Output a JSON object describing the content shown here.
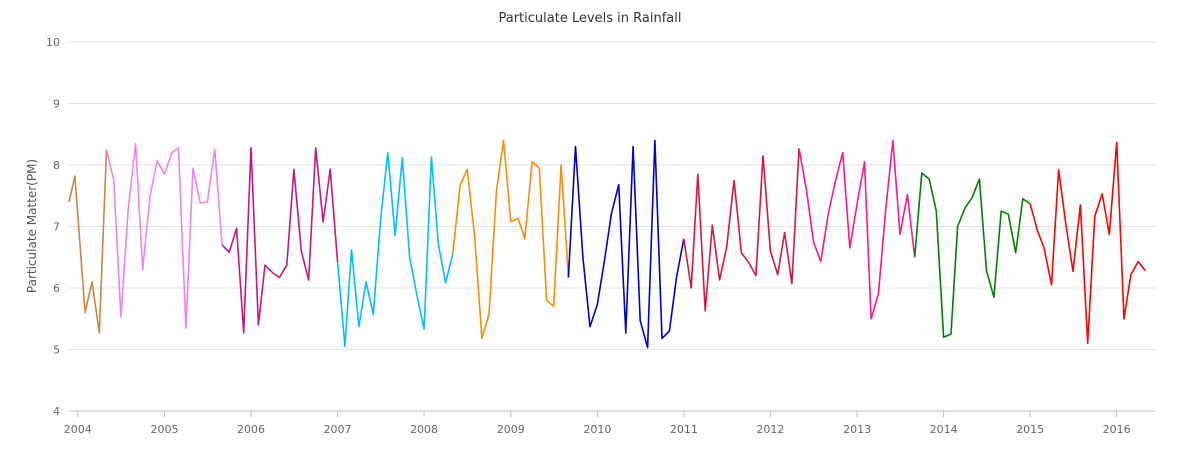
{
  "chart_data": {
    "type": "line",
    "title": "Particulate Levels in Rainfall",
    "ylabel": "Particulate Matter(PM)",
    "xlabel": "",
    "ylim": [
      4,
      10
    ],
    "yticks": [
      "4",
      "5",
      "6",
      "7",
      "8",
      "9",
      "10"
    ],
    "xlim": [
      "2003-11-25",
      "2016-06-15"
    ],
    "xticks": [
      {
        "label": "2004",
        "date": "2004-01-01"
      },
      {
        "label": "2005",
        "date": "2005-01-01"
      },
      {
        "label": "2006",
        "date": "2006-01-01"
      },
      {
        "label": "2007",
        "date": "2007-01-01"
      },
      {
        "label": "2008",
        "date": "2008-01-01"
      },
      {
        "label": "2009",
        "date": "2009-01-01"
      },
      {
        "label": "2010",
        "date": "2010-01-01"
      },
      {
        "label": "2011",
        "date": "2011-01-01"
      },
      {
        "label": "2012",
        "date": "2012-01-01"
      },
      {
        "label": "2013",
        "date": "2013-01-01"
      },
      {
        "label": "2014",
        "date": "2014-01-01"
      },
      {
        "label": "2015",
        "date": "2015-01-01"
      },
      {
        "label": "2016",
        "date": "2016-01-01"
      }
    ],
    "grid": true,
    "legend": "none",
    "series": [
      {
        "color": "#cd853f",
        "points": [
          [
            "2003-11-25",
            7.4
          ],
          [
            "2003-12-20",
            7.82
          ],
          [
            "2004-02-01",
            5.6
          ],
          [
            "2004-03-01",
            6.1
          ],
          [
            "2004-04-01",
            5.27
          ],
          [
            "2004-05-01",
            8.25
          ]
        ]
      },
      {
        "color": "#ee82ee",
        "points": [
          [
            "2004-05-01",
            8.25
          ],
          [
            "2004-06-01",
            7.75
          ],
          [
            "2004-07-01",
            5.53
          ],
          [
            "2004-08-01",
            7.3
          ],
          [
            "2004-09-01",
            8.35
          ],
          [
            "2004-10-01",
            6.3
          ],
          [
            "2004-11-01",
            7.5
          ],
          [
            "2004-12-01",
            8.07
          ],
          [
            "2005-01-01",
            7.85
          ],
          [
            "2005-02-01",
            8.2
          ],
          [
            "2005-03-01",
            8.28
          ],
          [
            "2005-04-01",
            5.35
          ],
          [
            "2005-05-01",
            7.95
          ],
          [
            "2005-06-01",
            7.38
          ],
          [
            "2005-07-01",
            7.4
          ],
          [
            "2005-08-01",
            8.25
          ],
          [
            "2005-09-01",
            6.7
          ]
        ]
      },
      {
        "color": "#c71585",
        "points": [
          [
            "2005-09-01",
            6.7
          ],
          [
            "2005-10-01",
            6.58
          ],
          [
            "2005-11-01",
            6.97
          ],
          [
            "2005-12-01",
            5.27
          ],
          [
            "2006-01-01",
            8.28
          ],
          [
            "2006-02-01",
            5.4
          ],
          [
            "2006-03-01",
            6.37
          ],
          [
            "2006-04-01",
            6.25
          ],
          [
            "2006-05-01",
            6.17
          ],
          [
            "2006-06-01",
            6.37
          ],
          [
            "2006-07-01",
            7.93
          ],
          [
            "2006-08-01",
            6.6
          ],
          [
            "2006-09-01",
            6.13
          ],
          [
            "2006-10-01",
            8.28
          ],
          [
            "2006-11-01",
            7.07
          ],
          [
            "2006-12-01",
            7.93
          ],
          [
            "2007-01-01",
            6.42
          ]
        ]
      },
      {
        "color": "#00bfff",
        "points": [
          [
            "2007-01-01",
            6.42
          ],
          [
            "2007-02-01",
            5.05
          ],
          [
            "2007-03-01",
            6.62
          ],
          [
            "2007-04-01",
            5.37
          ],
          [
            "2007-05-01",
            6.1
          ],
          [
            "2007-06-01",
            5.57
          ],
          [
            "2007-07-01",
            7.1
          ],
          [
            "2007-08-01",
            8.2
          ],
          [
            "2007-09-01",
            6.85
          ],
          [
            "2007-10-01",
            8.12
          ],
          [
            "2007-11-01",
            6.5
          ],
          [
            "2007-12-01",
            5.9
          ],
          [
            "2008-01-01",
            5.33
          ],
          [
            "2008-02-01",
            8.13
          ],
          [
            "2008-03-01",
            6.72
          ],
          [
            "2008-04-01",
            6.08
          ],
          [
            "2008-05-01",
            6.55
          ]
        ]
      },
      {
        "color": "#ff8c00",
        "points": [
          [
            "2008-05-01",
            6.55
          ],
          [
            "2008-06-01",
            7.67
          ],
          [
            "2008-07-01",
            7.93
          ],
          [
            "2008-08-01",
            6.85
          ],
          [
            "2008-09-01",
            5.18
          ],
          [
            "2008-10-01",
            5.57
          ],
          [
            "2008-11-01",
            7.57
          ],
          [
            "2008-12-01",
            8.4
          ],
          [
            "2009-01-01",
            7.08
          ],
          [
            "2009-02-01",
            7.13
          ],
          [
            "2009-03-01",
            6.8
          ],
          [
            "2009-04-01",
            8.05
          ],
          [
            "2009-05-01",
            7.95
          ],
          [
            "2009-06-01",
            5.8
          ],
          [
            "2009-07-01",
            5.7
          ],
          [
            "2009-08-01",
            8.0
          ],
          [
            "2009-09-01",
            6.17
          ]
        ]
      },
      {
        "color": "#0000cd",
        "points": [
          [
            "2009-09-01",
            6.17
          ],
          [
            "2009-10-01",
            8.3
          ],
          [
            "2009-11-01",
            6.5
          ],
          [
            "2009-12-01",
            5.37
          ],
          [
            "2010-01-01",
            5.73
          ],
          [
            "2010-02-01",
            6.47
          ],
          [
            "2010-03-01",
            7.2
          ],
          [
            "2010-04-01",
            7.68
          ],
          [
            "2010-05-01",
            5.27
          ],
          [
            "2010-06-01",
            8.3
          ],
          [
            "2010-07-01",
            5.47
          ],
          [
            "2010-08-01",
            5.03
          ],
          [
            "2010-09-01",
            8.4
          ],
          [
            "2010-10-01",
            5.18
          ],
          [
            "2010-11-01",
            5.3
          ],
          [
            "2010-12-01",
            6.17
          ],
          [
            "2011-01-01",
            6.8
          ]
        ]
      },
      {
        "color": "#dc143c",
        "points": [
          [
            "2011-01-01",
            6.8
          ],
          [
            "2011-02-01",
            6.0
          ],
          [
            "2011-03-01",
            7.85
          ],
          [
            "2011-04-01",
            5.63
          ],
          [
            "2011-05-01",
            7.02
          ],
          [
            "2011-06-01",
            6.13
          ],
          [
            "2011-07-01",
            6.67
          ],
          [
            "2011-08-01",
            7.75
          ],
          [
            "2011-09-01",
            6.57
          ],
          [
            "2011-10-01",
            6.42
          ],
          [
            "2011-11-01",
            6.2
          ],
          [
            "2011-12-01",
            8.15
          ],
          [
            "2012-01-01",
            6.6
          ],
          [
            "2012-02-01",
            6.22
          ],
          [
            "2012-03-01",
            6.9
          ],
          [
            "2012-04-01",
            6.07
          ],
          [
            "2012-05-01",
            8.27
          ]
        ]
      },
      {
        "color": "#ff1493",
        "points": [
          [
            "2012-05-01",
            8.27
          ],
          [
            "2012-06-01",
            7.6
          ],
          [
            "2012-07-01",
            6.75
          ],
          [
            "2012-08-01",
            6.43
          ],
          [
            "2012-09-01",
            7.2
          ],
          [
            "2012-10-01",
            7.73
          ],
          [
            "2012-11-01",
            8.2
          ],
          [
            "2012-12-01",
            6.65
          ],
          [
            "2013-01-01",
            7.37
          ],
          [
            "2013-02-01",
            8.05
          ],
          [
            "2013-03-01",
            5.5
          ],
          [
            "2013-04-01",
            5.9
          ],
          [
            "2013-05-01",
            7.25
          ],
          [
            "2013-06-01",
            8.4
          ],
          [
            "2013-07-01",
            6.87
          ],
          [
            "2013-08-01",
            7.52
          ],
          [
            "2013-09-01",
            6.5
          ]
        ]
      },
      {
        "color": "#008000",
        "points": [
          [
            "2013-09-01",
            6.5
          ],
          [
            "2013-10-01",
            7.87
          ],
          [
            "2013-11-01",
            7.77
          ],
          [
            "2013-12-01",
            7.25
          ],
          [
            "2014-01-01",
            5.2
          ],
          [
            "2014-02-01",
            5.25
          ],
          [
            "2014-03-01",
            7.0
          ],
          [
            "2014-04-01",
            7.3
          ],
          [
            "2014-05-01",
            7.47
          ],
          [
            "2014-06-01",
            7.77
          ],
          [
            "2014-07-01",
            6.28
          ],
          [
            "2014-08-01",
            5.85
          ],
          [
            "2014-09-01",
            7.25
          ],
          [
            "2014-10-01",
            7.2
          ],
          [
            "2014-11-01",
            6.57
          ],
          [
            "2014-12-01",
            7.45
          ],
          [
            "2015-01-01",
            7.37
          ]
        ]
      },
      {
        "color": "#ff0000",
        "points": [
          [
            "2015-01-01",
            7.37
          ],
          [
            "2015-02-01",
            6.93
          ],
          [
            "2015-03-01",
            6.65
          ],
          [
            "2015-04-01",
            6.05
          ],
          [
            "2015-05-01",
            7.92
          ],
          [
            "2015-06-01",
            7.03
          ],
          [
            "2015-07-01",
            6.27
          ],
          [
            "2015-08-01",
            7.35
          ],
          [
            "2015-09-01",
            5.1
          ],
          [
            "2015-10-01",
            7.17
          ],
          [
            "2015-11-01",
            7.53
          ],
          [
            "2015-12-01",
            6.87
          ],
          [
            "2016-01-01",
            8.37
          ],
          [
            "2016-02-01",
            5.5
          ],
          [
            "2016-03-01",
            6.22
          ],
          [
            "2016-04-01",
            6.43
          ],
          [
            "2016-05-01",
            6.28
          ]
        ]
      }
    ]
  }
}
